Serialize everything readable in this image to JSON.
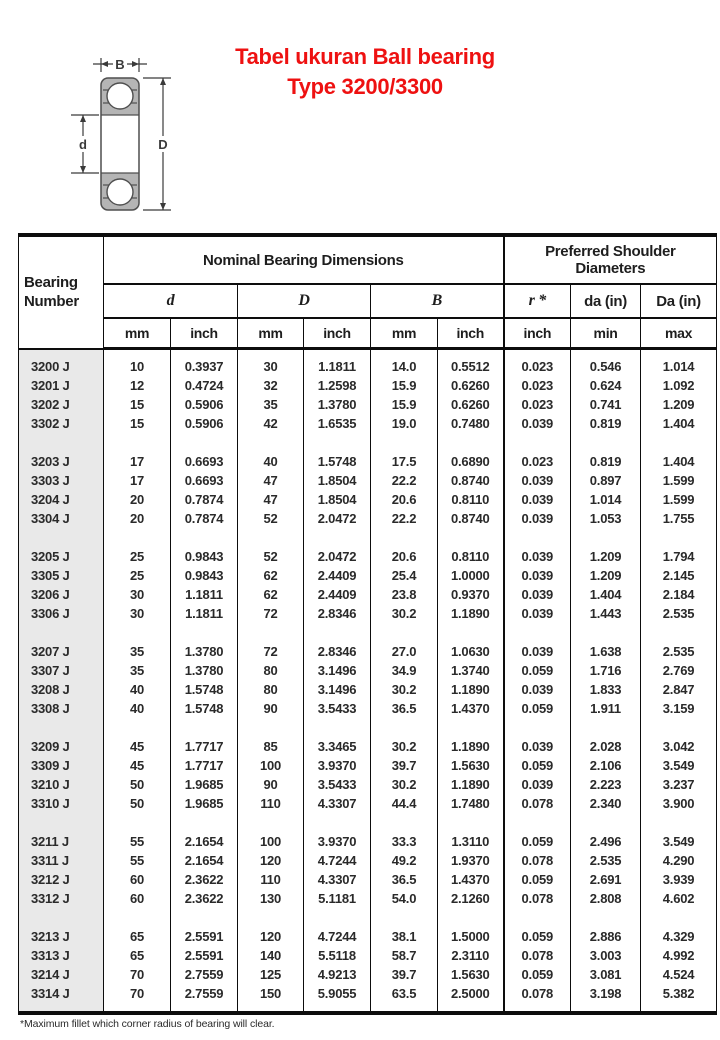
{
  "title": {
    "line1": "Tabel ukuran Ball bearing",
    "line2": "Type 3200/3300",
    "color": "#ee1111"
  },
  "diagram": {
    "labels": {
      "width": "B",
      "bore": "d",
      "outer": "D"
    },
    "colors": {
      "ring_fill": "#b5b5b5",
      "outline": "#4f4f4f",
      "dimension": "#3a3a3a"
    }
  },
  "table": {
    "header": {
      "bearing_line1": "Bearing",
      "bearing_line2": "Number",
      "nominal": "Nominal Bearing Dimensions",
      "preferred_line1": "Preferred Shoulder",
      "preferred_line2": "Diameters",
      "d": "d",
      "D": "D",
      "B": "B",
      "r": "r *",
      "da": "da (in)",
      "Da": "Da (in)",
      "units": [
        "mm",
        "inch",
        "mm",
        "inch",
        "mm",
        "inch",
        "inch",
        "min",
        "max"
      ]
    },
    "groups": [
      [
        [
          "3200 J",
          "10",
          "0.3937",
          "30",
          "1.1811",
          "14.0",
          "0.5512",
          "0.023",
          "0.546",
          "1.014"
        ],
        [
          "3201 J",
          "12",
          "0.4724",
          "32",
          "1.2598",
          "15.9",
          "0.6260",
          "0.023",
          "0.624",
          "1.092"
        ],
        [
          "3202 J",
          "15",
          "0.5906",
          "35",
          "1.3780",
          "15.9",
          "0.6260",
          "0.023",
          "0.741",
          "1.209"
        ],
        [
          "3302 J",
          "15",
          "0.5906",
          "42",
          "1.6535",
          "19.0",
          "0.7480",
          "0.039",
          "0.819",
          "1.404"
        ]
      ],
      [
        [
          "3203 J",
          "17",
          "0.6693",
          "40",
          "1.5748",
          "17.5",
          "0.6890",
          "0.023",
          "0.819",
          "1.404"
        ],
        [
          "3303 J",
          "17",
          "0.6693",
          "47",
          "1.8504",
          "22.2",
          "0.8740",
          "0.039",
          "0.897",
          "1.599"
        ],
        [
          "3204 J",
          "20",
          "0.7874",
          "47",
          "1.8504",
          "20.6",
          "0.8110",
          "0.039",
          "1.014",
          "1.599"
        ],
        [
          "3304 J",
          "20",
          "0.7874",
          "52",
          "2.0472",
          "22.2",
          "0.8740",
          "0.039",
          "1.053",
          "1.755"
        ]
      ],
      [
        [
          "3205 J",
          "25",
          "0.9843",
          "52",
          "2.0472",
          "20.6",
          "0.8110",
          "0.039",
          "1.209",
          "1.794"
        ],
        [
          "3305 J",
          "25",
          "0.9843",
          "62",
          "2.4409",
          "25.4",
          "1.0000",
          "0.039",
          "1.209",
          "2.145"
        ],
        [
          "3206 J",
          "30",
          "1.1811",
          "62",
          "2.4409",
          "23.8",
          "0.9370",
          "0.039",
          "1.404",
          "2.184"
        ],
        [
          "3306 J",
          "30",
          "1.1811",
          "72",
          "2.8346",
          "30.2",
          "1.1890",
          "0.039",
          "1.443",
          "2.535"
        ]
      ],
      [
        [
          "3207 J",
          "35",
          "1.3780",
          "72",
          "2.8346",
          "27.0",
          "1.0630",
          "0.039",
          "1.638",
          "2.535"
        ],
        [
          "3307 J",
          "35",
          "1.3780",
          "80",
          "3.1496",
          "34.9",
          "1.3740",
          "0.059",
          "1.716",
          "2.769"
        ],
        [
          "3208 J",
          "40",
          "1.5748",
          "80",
          "3.1496",
          "30.2",
          "1.1890",
          "0.039",
          "1.833",
          "2.847"
        ],
        [
          "3308 J",
          "40",
          "1.5748",
          "90",
          "3.5433",
          "36.5",
          "1.4370",
          "0.059",
          "1.911",
          "3.159"
        ]
      ],
      [
        [
          "3209 J",
          "45",
          "1.7717",
          "85",
          "3.3465",
          "30.2",
          "1.1890",
          "0.039",
          "2.028",
          "3.042"
        ],
        [
          "3309 J",
          "45",
          "1.7717",
          "100",
          "3.9370",
          "39.7",
          "1.5630",
          "0.059",
          "2.106",
          "3.549"
        ],
        [
          "3210 J",
          "50",
          "1.9685",
          "90",
          "3.5433",
          "30.2",
          "1.1890",
          "0.039",
          "2.223",
          "3.237"
        ],
        [
          "3310 J",
          "50",
          "1.9685",
          "110",
          "4.3307",
          "44.4",
          "1.7480",
          "0.078",
          "2.340",
          "3.900"
        ]
      ],
      [
        [
          "3211 J",
          "55",
          "2.1654",
          "100",
          "3.9370",
          "33.3",
          "1.3110",
          "0.059",
          "2.496",
          "3.549"
        ],
        [
          "3311 J",
          "55",
          "2.1654",
          "120",
          "4.7244",
          "49.2",
          "1.9370",
          "0.078",
          "2.535",
          "4.290"
        ],
        [
          "3212 J",
          "60",
          "2.3622",
          "110",
          "4.3307",
          "36.5",
          "1.4370",
          "0.059",
          "2.691",
          "3.939"
        ],
        [
          "3312 J",
          "60",
          "2.3622",
          "130",
          "5.1181",
          "54.0",
          "2.1260",
          "0.078",
          "2.808",
          "4.602"
        ]
      ],
      [
        [
          "3213 J",
          "65",
          "2.5591",
          "120",
          "4.7244",
          "38.1",
          "1.5000",
          "0.059",
          "2.886",
          "4.329"
        ],
        [
          "3313 J",
          "65",
          "2.5591",
          "140",
          "5.5118",
          "58.7",
          "2.3110",
          "0.078",
          "3.003",
          "4.992"
        ],
        [
          "3214 J",
          "70",
          "2.7559",
          "125",
          "4.9213",
          "39.7",
          "1.5630",
          "0.059",
          "3.081",
          "4.524"
        ],
        [
          "3314 J",
          "70",
          "2.7559",
          "150",
          "5.9055",
          "63.5",
          "2.5000",
          "0.078",
          "3.198",
          "5.382"
        ]
      ]
    ]
  },
  "footnote": "*Maximum fillet which corner radius of bearing will clear."
}
